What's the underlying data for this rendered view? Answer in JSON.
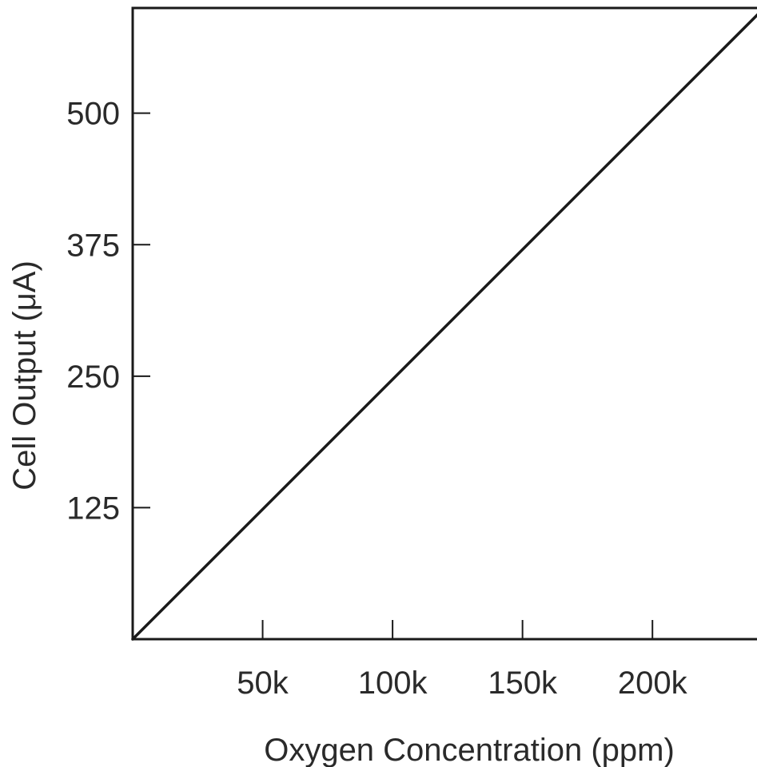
{
  "chart_data": {
    "type": "line",
    "title": "",
    "xlabel": "Oxygen Concentration (ppm)",
    "ylabel": "Cell Output (μA)",
    "xlim": [
      0,
      243000
    ],
    "ylim": [
      0,
      600
    ],
    "x_ticks": [
      {
        "value": 50000,
        "label": "50k"
      },
      {
        "value": 100000,
        "label": "100k"
      },
      {
        "value": 150000,
        "label": "150k"
      },
      {
        "value": 200000,
        "label": "200k"
      }
    ],
    "y_ticks": [
      {
        "value": 125,
        "label": "125"
      },
      {
        "value": 250,
        "label": "250"
      },
      {
        "value": 375,
        "label": "375"
      },
      {
        "value": 500,
        "label": "500"
      }
    ],
    "grid": false,
    "legend": "none",
    "line_color": "#1a1a1a",
    "series": [
      {
        "x": [
          0,
          243000
        ],
        "values": [
          0,
          600
        ]
      }
    ]
  }
}
